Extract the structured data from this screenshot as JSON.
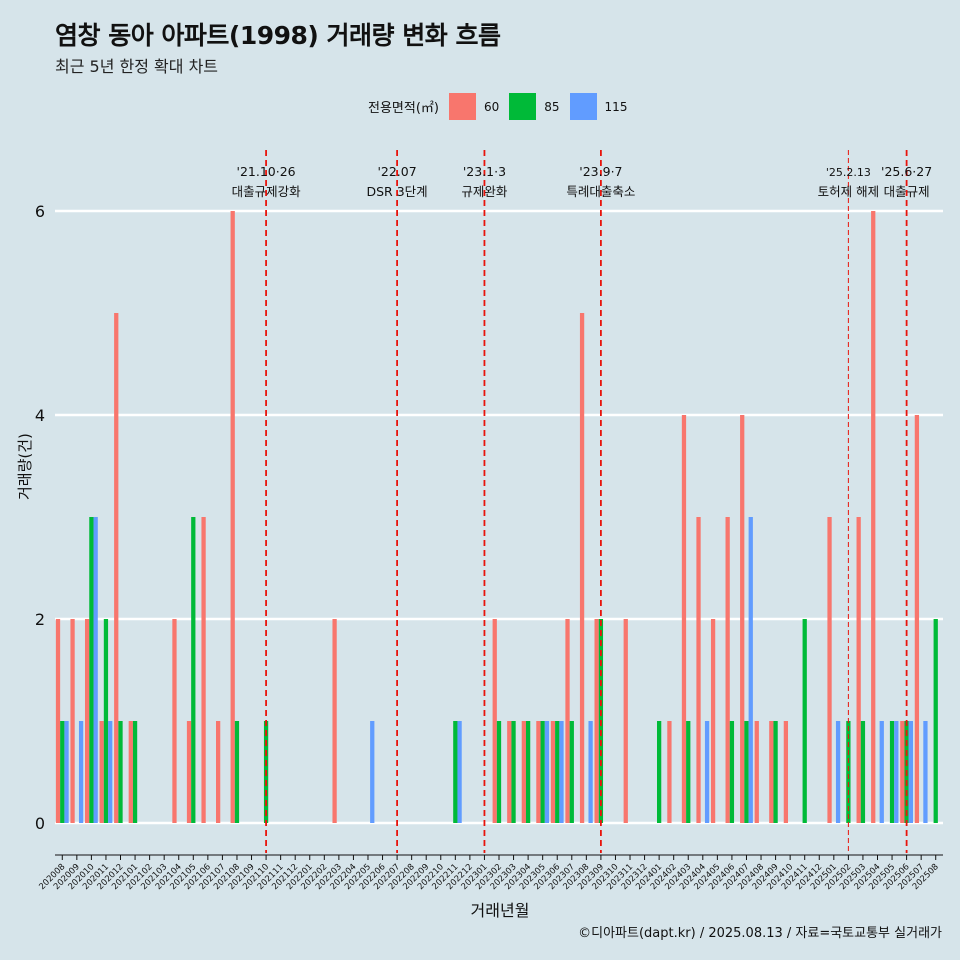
{
  "title": "염창 동아 아파트(1998) 거래량 변화 흐름",
  "subtitle": "최근 5년 한정 확대 차트",
  "legend": {
    "title": "전용면적(㎡)",
    "items": [
      {
        "label": "60",
        "color": "#f8766d"
      },
      {
        "label": "85",
        "color": "#00ba38"
      },
      {
        "label": "115",
        "color": "#619cff"
      }
    ]
  },
  "caption": "©디아파트(dapt.kr) / 2025.08.13 / 자료=국토교통부 실거래가",
  "chart_data": {
    "type": "bar",
    "xlabel": "거래년월",
    "ylabel": "거래량(건)",
    "ylim": [
      0,
      6.5
    ],
    "yticks": [
      0,
      2,
      4,
      6
    ],
    "categories": [
      "202008",
      "202009",
      "202010",
      "202011",
      "202012",
      "202101",
      "202102",
      "202103",
      "202104",
      "202105",
      "202106",
      "202107",
      "202108",
      "202109",
      "202110",
      "202111",
      "202112",
      "202201",
      "202202",
      "202203",
      "202204",
      "202205",
      "202206",
      "202207",
      "202208",
      "202209",
      "202210",
      "202211",
      "202212",
      "202301",
      "202302",
      "202303",
      "202304",
      "202305",
      "202306",
      "202307",
      "202308",
      "202309",
      "202310",
      "202311",
      "202312",
      "202401",
      "202402",
      "202403",
      "202404",
      "202405",
      "202406",
      "202407",
      "202408",
      "202409",
      "202410",
      "202411",
      "202412",
      "202501",
      "202502",
      "202503",
      "202504",
      "202505",
      "202506",
      "202507",
      "202508"
    ],
    "series": [
      {
        "name": "60",
        "color": "#f8766d",
        "values": [
          2,
          2,
          2,
          1,
          5,
          1,
          0,
          0,
          2,
          1,
          3,
          1,
          6,
          0,
          0,
          0,
          0,
          0,
          0,
          2,
          0,
          0,
          0,
          0,
          0,
          0,
          0,
          0,
          0,
          0,
          2,
          1,
          1,
          1,
          1,
          2,
          5,
          2,
          0,
          2,
          0,
          0,
          1,
          4,
          3,
          2,
          3,
          4,
          1,
          1,
          1,
          0,
          0,
          3,
          0,
          3,
          6,
          0,
          1,
          4,
          0
        ]
      },
      {
        "name": "85",
        "color": "#00ba38",
        "values": [
          1,
          0,
          3,
          2,
          1,
          1,
          0,
          0,
          0,
          3,
          0,
          0,
          1,
          0,
          1,
          0,
          0,
          0,
          0,
          0,
          0,
          0,
          0,
          0,
          0,
          0,
          0,
          1,
          0,
          0,
          1,
          1,
          1,
          1,
          1,
          1,
          0,
          2,
          0,
          0,
          0,
          1,
          0,
          1,
          0,
          0,
          1,
          1,
          0,
          1,
          0,
          2,
          0,
          0,
          1,
          1,
          0,
          1,
          1,
          0,
          2
        ]
      },
      {
        "name": "115",
        "color": "#619cff",
        "values": [
          1,
          1,
          3,
          1,
          0,
          0,
          0,
          0,
          0,
          0,
          0,
          0,
          0,
          0,
          0,
          0,
          0,
          0,
          0,
          0,
          0,
          1,
          0,
          0,
          0,
          0,
          0,
          1,
          0,
          0,
          0,
          0,
          0,
          1,
          1,
          0,
          1,
          0,
          0,
          0,
          0,
          0,
          0,
          0,
          1,
          0,
          0,
          3,
          0,
          0,
          0,
          0,
          0,
          1,
          0,
          0,
          1,
          1,
          1,
          1,
          0
        ]
      }
    ],
    "annotations": [
      {
        "category": "202110",
        "line1": "'21.10·26",
        "line2": "대출규제강화",
        "style": "dashed"
      },
      {
        "category": "202207",
        "line1": "'22.07",
        "line2": "DSR 3단계",
        "style": "dashed"
      },
      {
        "category": "202301",
        "line1": "'23.1·3",
        "line2": "규제완화",
        "style": "dashed"
      },
      {
        "category": "202309",
        "line1": "'23.9·7",
        "line2": "특례대출축소",
        "style": "dashed"
      },
      {
        "category": "202502",
        "line1": "'25.2.13",
        "line2": "토허제 해제",
        "style": "thin"
      },
      {
        "category": "202506",
        "line1": "'25.6·27",
        "line2": "대출규제",
        "style": "dashed"
      }
    ]
  }
}
